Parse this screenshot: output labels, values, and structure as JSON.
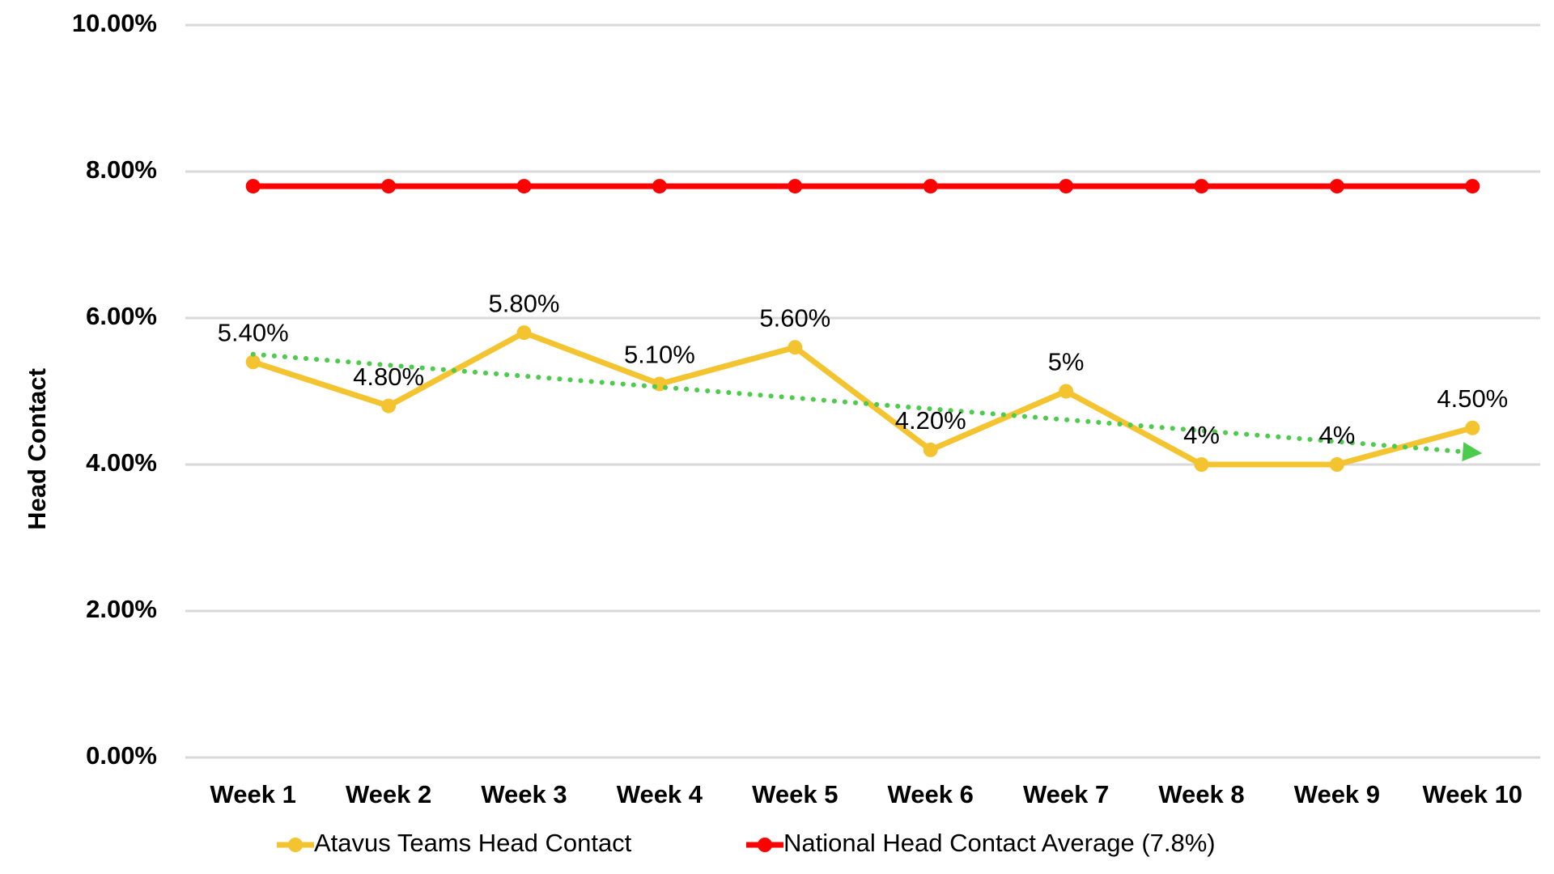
{
  "chart_data": {
    "type": "line",
    "y_label": "Head Contact",
    "categories": [
      "Week 1",
      "Week 2",
      "Week 3",
      "Week 4",
      "Week 5",
      "Week 6",
      "Week 7",
      "Week 8",
      "Week 9",
      "Week 10"
    ],
    "series": [
      {
        "name": "Atavus Teams Head Contact",
        "color": "#f4c430",
        "values": [
          5.4,
          4.8,
          5.8,
          5.1,
          5.6,
          4.2,
          5,
          4,
          4,
          4.5
        ],
        "value_labels": [
          "5.40%",
          "4.80%",
          "5.80%",
          "5.10%",
          "5.60%",
          "4.20%",
          "5%",
          "4%",
          "4%",
          "4.50%"
        ]
      },
      {
        "name": "National Head Contact Average (7.8%)",
        "color": "#ff0000",
        "values": [
          7.8,
          7.8,
          7.8,
          7.8,
          7.8,
          7.8,
          7.8,
          7.8,
          7.8,
          7.8
        ]
      }
    ],
    "ylim": [
      0,
      10
    ],
    "yticks": [
      {
        "value": 0,
        "label": "0.00%"
      },
      {
        "value": 2,
        "label": "2.00%"
      },
      {
        "value": 4,
        "label": "4.00%"
      },
      {
        "value": 6,
        "label": "6.00%"
      },
      {
        "value": 8,
        "label": "8.00%"
      },
      {
        "value": 10,
        "label": "10.00%"
      }
    ],
    "grid": true
  }
}
